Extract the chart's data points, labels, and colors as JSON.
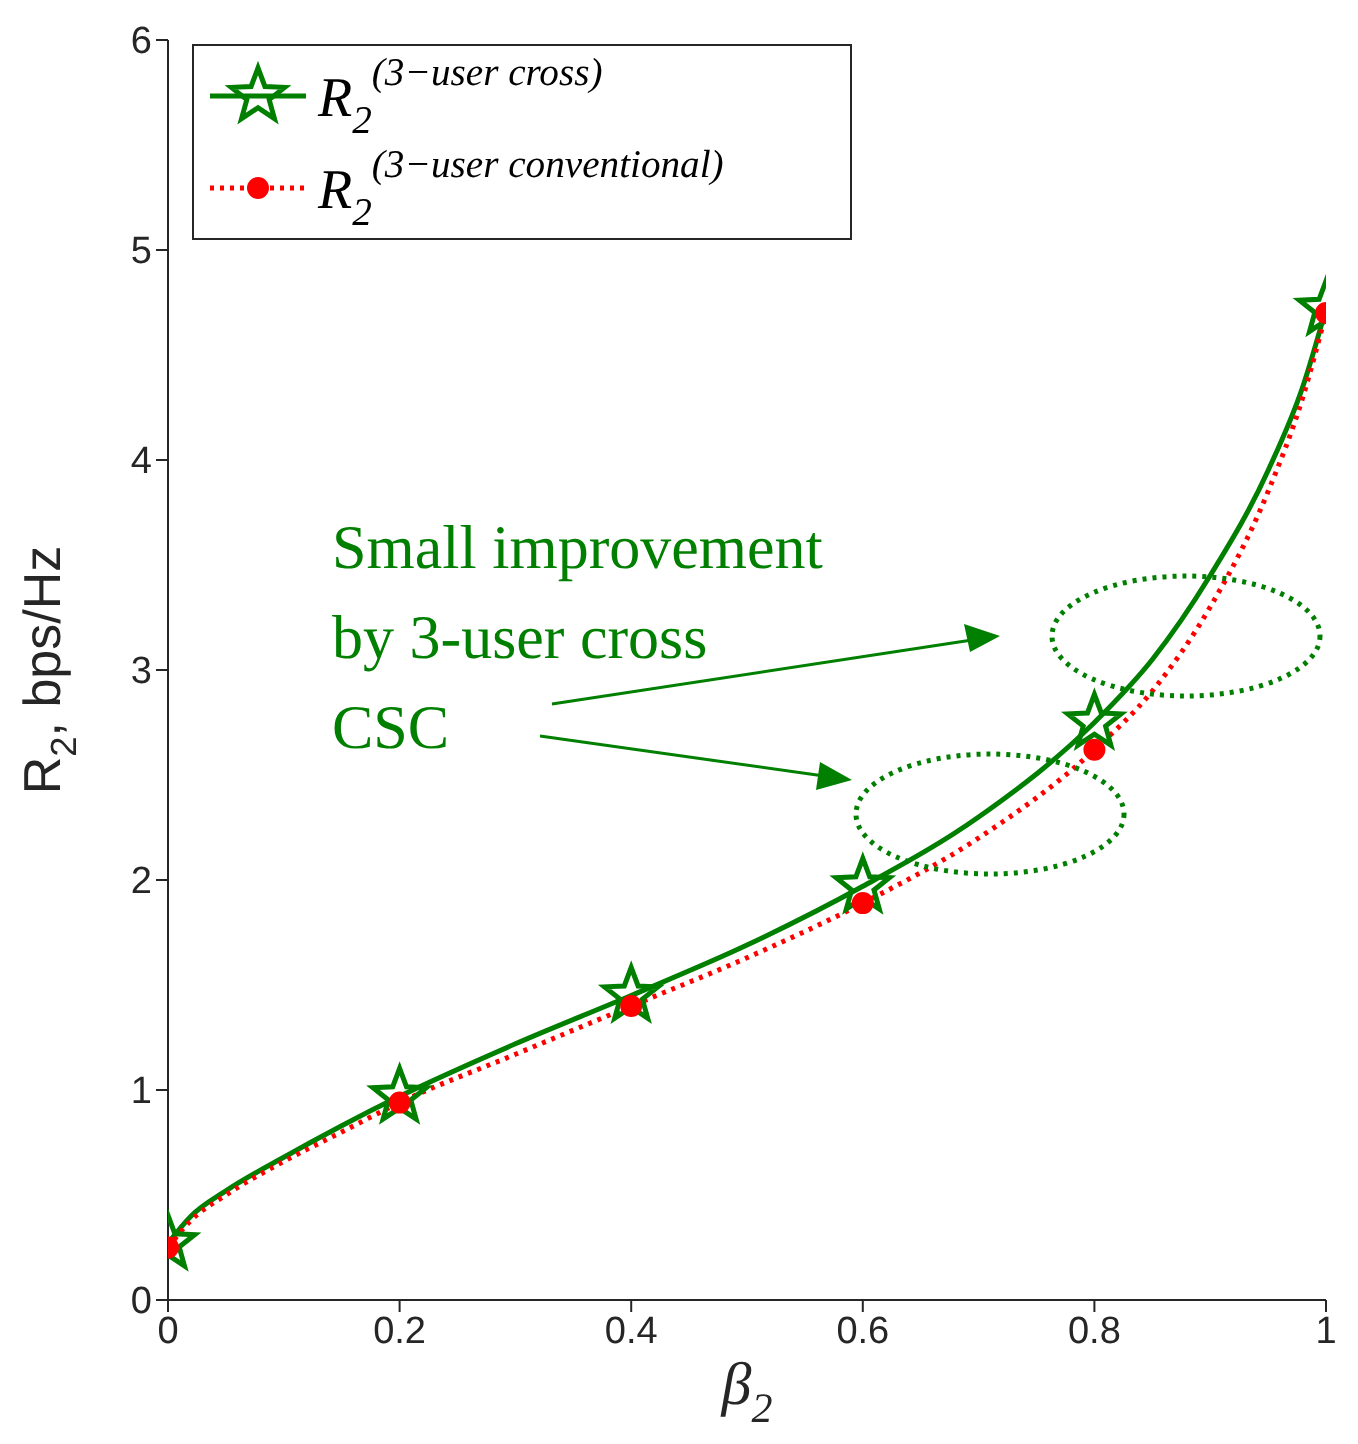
{
  "chart_data": {
    "type": "line",
    "xlabel": "β$_{2}$",
    "ylabel": "R$_{2}$, bps/Hz",
    "xlim": [
      0,
      1
    ],
    "xticks": [
      0,
      0.2,
      0.4,
      0.6,
      0.8,
      1
    ],
    "ylim": [
      0,
      6
    ],
    "yticks": [
      0,
      1,
      2,
      3,
      4,
      5,
      6
    ],
    "legend": "top left",
    "grid": false,
    "annotations": [
      "Small improvement\nby 3-user cross\nCSC"
    ],
    "series": [
      {
        "name": "R$_{2}$$^{(3−user cross)}$",
        "color": "#007f00",
        "line_style": "solid",
        "x": [
          0,
          0.02,
          0.05,
          0.1,
          0.15,
          0.2,
          0.3,
          0.4,
          0.5,
          0.6,
          0.7,
          0.8,
          0.85,
          0.9,
          0.95,
          0.98,
          1
        ],
        "values": [
          0.27,
          0.4,
          0.52,
          0.68,
          0.83,
          0.97,
          1.22,
          1.45,
          1.69,
          1.97,
          2.3,
          2.75,
          3.05,
          3.45,
          3.95,
          4.35,
          4.72
        ]
      },
      {
        "name": "R$_{2}$$^{(3−user conventional)}$",
        "color": "#ff0000",
        "line_style": "dotted",
        "x": [
          0,
          0.02,
          0.05,
          0.1,
          0.15,
          0.2,
          0.3,
          0.4,
          0.5,
          0.6,
          0.7,
          0.8,
          0.85,
          0.9,
          0.95,
          0.98,
          1
        ],
        "values": [
          0.25,
          0.38,
          0.5,
          0.66,
          0.8,
          0.94,
          1.17,
          1.4,
          1.63,
          1.89,
          2.2,
          2.62,
          2.9,
          3.3,
          3.85,
          4.3,
          4.7
        ]
      },
      {
        "type": "scatter",
        "color": "#007f00",
        "marker": "star",
        "x": [
          0,
          0.2,
          0.4,
          0.6,
          0.8,
          1
        ],
        "values": [
          0.27,
          0.97,
          1.45,
          1.97,
          2.75,
          4.72
        ]
      },
      {
        "type": "scatter",
        "color": "#ff0000",
        "marker": "circle",
        "x": [
          0,
          0.2,
          0.4,
          0.6,
          0.8,
          1
        ],
        "values": [
          0.25,
          0.94,
          1.4,
          1.89,
          2.62,
          4.7
        ]
      }
    ]
  }
}
